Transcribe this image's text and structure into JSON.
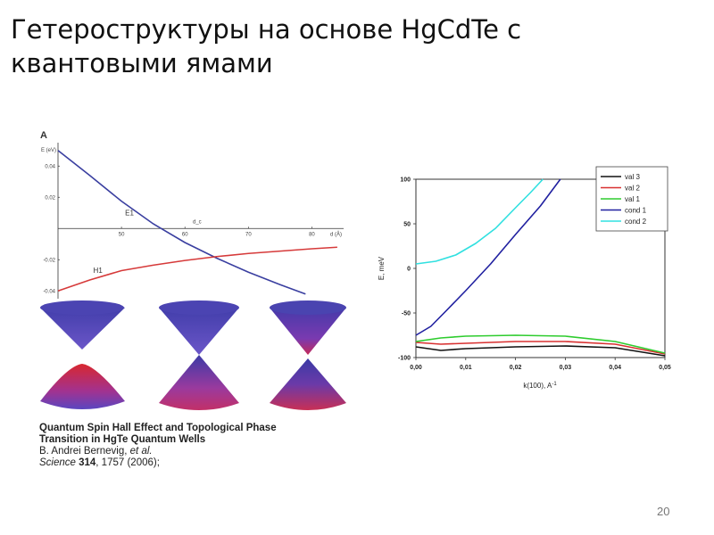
{
  "slide": {
    "title_line1": "Гетероструктуры на основе HgCdTe с",
    "title_line2": "квантовыми ямами",
    "page_number": "20"
  },
  "citation": {
    "title_line1": "Quantum Spin Hall Effect and Topological Phase",
    "title_line2": "Transition in HgTe Quantum Wells",
    "authors_name": "B. Andrei Bernevig, ",
    "authors_etal": "et al.",
    "journal": "Science ",
    "volume": "314",
    "pages_year": ", 1757 (2006);"
  },
  "colors": {
    "band_blue": "#3a3fa0",
    "band_red": "#d63a3a",
    "cone_blue": "#3b3ea8",
    "cone_red": "#c8306a"
  },
  "chart_data": [
    {
      "type": "line",
      "panel_label": "A",
      "ylabel": "E (eV)",
      "xlabel": "d (Å)",
      "critical_label": "d_c",
      "xlim": [
        40,
        85
      ],
      "ylim": [
        -0.045,
        0.055
      ],
      "x_ticks": [
        "50",
        "60",
        "70",
        "80"
      ],
      "y_ticks": [
        "0.04",
        "0.02",
        "-0.02",
        "-0.04"
      ],
      "series": [
        {
          "name": "E1",
          "x": [
            40,
            45,
            50,
            55,
            60,
            65,
            70,
            75,
            79
          ],
          "y": [
            0.05,
            0.034,
            0.0175,
            0.003,
            -0.009,
            -0.019,
            -0.028,
            -0.036,
            -0.042
          ]
        },
        {
          "name": "H1",
          "x": [
            40,
            45,
            50,
            55,
            60,
            65,
            70,
            75,
            80,
            84
          ],
          "y": [
            -0.04,
            -0.033,
            -0.027,
            -0.0235,
            -0.0205,
            -0.018,
            -0.016,
            -0.0145,
            -0.013,
            -0.012
          ]
        }
      ]
    },
    {
      "type": "line",
      "xlabel": "k(100), A",
      "xlabel_sup": "-1",
      "ylabel": "E, meV",
      "xlim": [
        0,
        0.05
      ],
      "ylim": [
        -100,
        100
      ],
      "x_ticks": [
        "0,00",
        "0,01",
        "0,02",
        "0,03",
        "0,04",
        "0,05"
      ],
      "y_ticks": [
        "100",
        "50",
        "0",
        "-50",
        "-100"
      ],
      "legend_position": "top-right",
      "series": [
        {
          "name": "val 3",
          "color": "#111111",
          "x": [
            0,
            0.005,
            0.01,
            0.02,
            0.03,
            0.04,
            0.05
          ],
          "y": [
            -88,
            -92,
            -90,
            -88,
            -87,
            -89,
            -98
          ]
        },
        {
          "name": "val 2",
          "color": "#d83030",
          "x": [
            0,
            0.005,
            0.01,
            0.02,
            0.03,
            0.04,
            0.05
          ],
          "y": [
            -83,
            -85,
            -84,
            -82,
            -82,
            -85,
            -96
          ]
        },
        {
          "name": "val 1",
          "color": "#2ecc2e",
          "x": [
            0,
            0.005,
            0.01,
            0.02,
            0.03,
            0.04,
            0.05
          ],
          "y": [
            -82,
            -78,
            -76,
            -75,
            -76,
            -82,
            -95
          ]
        },
        {
          "name": "cond 1",
          "color": "#2020a0",
          "x": [
            0,
            0.003,
            0.006,
            0.01,
            0.015,
            0.02,
            0.025,
            0.029
          ],
          "y": [
            -75,
            -65,
            -48,
            -25,
            5,
            38,
            70,
            100
          ]
        },
        {
          "name": "cond 2",
          "color": "#30e0e0",
          "x": [
            0,
            0.004,
            0.008,
            0.012,
            0.016,
            0.02,
            0.023,
            0.0255
          ],
          "y": [
            5,
            8,
            15,
            28,
            45,
            68,
            85,
            100
          ]
        }
      ]
    }
  ]
}
